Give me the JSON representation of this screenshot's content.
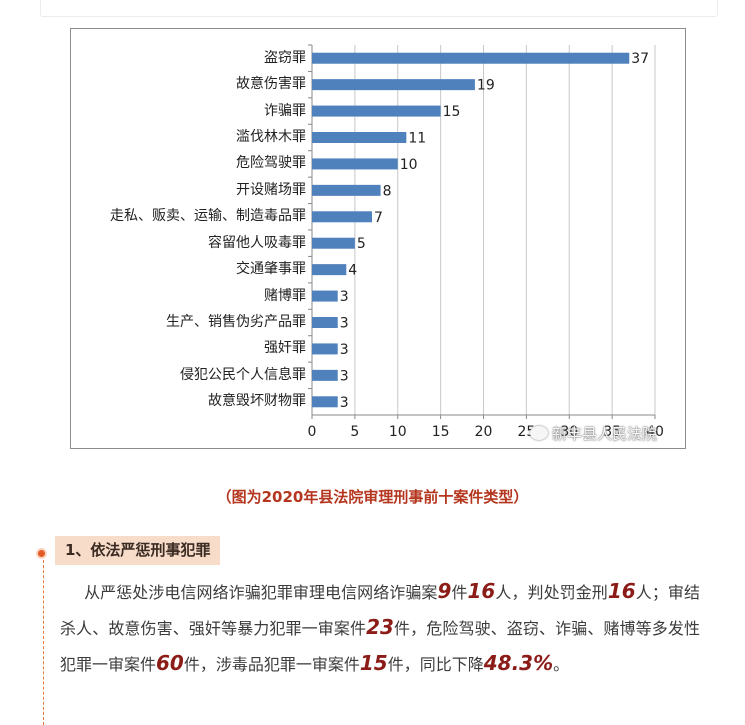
{
  "chart_data": {
    "type": "bar",
    "orientation": "horizontal",
    "categories": [
      "盗窃罪",
      "故意伤害罪",
      "诈骗罪",
      "滥伐林木罪",
      "危险驾驶罪",
      "开设赌场罪",
      "走私、贩卖、运输、制造毒品罪",
      "容留他人吸毒罪",
      "交通肇事罪",
      "赌博罪",
      "生产、销售伪劣产品罪",
      "强奸罪",
      "侵犯公民个人信息罪",
      "故意毁坏财物罪"
    ],
    "values": [
      37,
      19,
      15,
      11,
      10,
      8,
      7,
      5,
      4,
      3,
      3,
      3,
      3,
      3
    ],
    "xlim": [
      0,
      40
    ],
    "x_ticks": [
      0,
      5,
      10,
      15,
      20,
      25,
      30,
      35,
      40
    ],
    "grid": "vertical",
    "bar_color": "#4f81bd"
  },
  "watermark": {
    "text": "新丰县人民法院"
  },
  "caption": "（图为2020年县法院审理刑事前十案件类型）",
  "section": {
    "title": "1、依法严惩刑事犯罪",
    "para": [
      {
        "t": "从严惩处涉电信网络诈骗犯罪审理电信网络诈骗案"
      },
      {
        "n": "9"
      },
      {
        "t": "件"
      },
      {
        "n": "16"
      },
      {
        "t": "人，判处罚金刑"
      },
      {
        "n": "16"
      },
      {
        "t": "人；审结杀人、故意伤害、强奸等暴力犯罪一审案件"
      },
      {
        "n": "23"
      },
      {
        "t": "件，危险驾驶、盗窃、诈骗、赌博等多发性犯罪一审案件"
      },
      {
        "n": "60"
      },
      {
        "t": "件，涉毒品犯罪一审案件"
      },
      {
        "n": "15"
      },
      {
        "t": "件，同比下降"
      },
      {
        "n": "48.3%"
      },
      {
        "t": "。"
      }
    ]
  }
}
